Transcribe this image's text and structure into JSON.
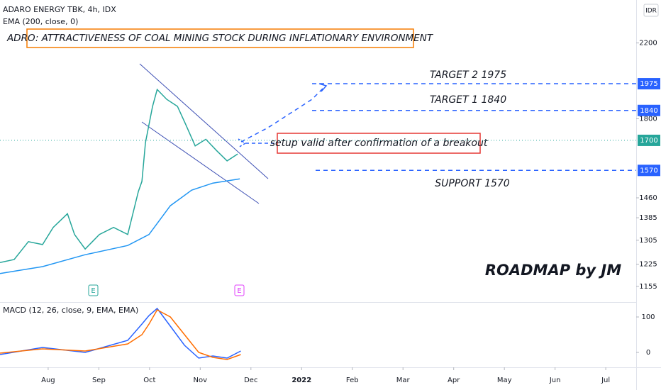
{
  "chart_data": [
    {
      "type": "line",
      "ylog": true,
      "ylim": [
        1110,
        2465
      ],
      "yticks": [
        1155,
        1225,
        1305,
        1385,
        1460,
        1800,
        2200
      ],
      "y_unit": "IDR",
      "xlim": [
        7.05,
        19.6
      ],
      "xticks": [
        {
          "value": 8,
          "label": "Aug"
        },
        {
          "value": 9,
          "label": "Sep"
        },
        {
          "value": 10,
          "label": "Oct"
        },
        {
          "value": 11,
          "label": "Nov"
        },
        {
          "value": 12,
          "label": "Dec"
        },
        {
          "value": 13,
          "label": "2022"
        },
        {
          "value": 14,
          "label": "Feb"
        },
        {
          "value": 15,
          "label": "Mar"
        },
        {
          "value": 16,
          "label": "Apr"
        },
        {
          "value": 17,
          "label": "May"
        },
        {
          "value": 18,
          "label": "Jun"
        },
        {
          "value": 19,
          "label": "Jul"
        }
      ],
      "series": [
        {
          "name": "ADARO ENERGY TBK, 4h, IDX",
          "color": "#26a69a",
          "x": [
            7.05,
            7.33,
            7.61,
            7.89,
            8.1,
            8.38,
            8.52,
            8.73,
            9.01,
            9.29,
            9.57,
            9.78,
            9.85,
            9.92,
            10.06,
            10.15,
            10.34,
            10.55,
            10.71,
            10.9,
            11.11,
            11.32,
            11.53,
            11.74
          ],
          "values": [
            1230,
            1240,
            1300,
            1290,
            1350,
            1400,
            1325,
            1275,
            1325,
            1350,
            1325,
            1485,
            1525,
            1690,
            1860,
            1945,
            1895,
            1860,
            1775,
            1675,
            1705,
            1655,
            1610,
            1640
          ]
        },
        {
          "name": "EMA (200, close, 0)",
          "color": "#2196f3",
          "x": [
            7.05,
            7.89,
            8.73,
            9.57,
            9.99,
            10.41,
            10.83,
            11.25,
            11.78
          ],
          "values": [
            1195,
            1217,
            1256,
            1287,
            1325,
            1430,
            1490,
            1518,
            1535
          ]
        }
      ],
      "levels": [
        1975,
        1840,
        1570
      ],
      "last_price": 1700,
      "annotations": {
        "title_box": "ADRO: ATTRACTIVENESS OF COAL MINING STOCK DURING INFLATIONARY ENVIRONMENT",
        "target2": "TARGET 2  1975",
        "target1": "TARGET 1  1840",
        "support": "SUPPORT 1570",
        "note": "setup valid after confirmation of a breakout",
        "signature": "ROADMAP by JM",
        "earnings": [
          "E",
          "E"
        ]
      }
    },
    {
      "type": "line",
      "title": "MACD (12, 26, close, 9, EMA, EMA)",
      "xlim": [
        7.05,
        19.6
      ],
      "ylim": [
        -36,
        138
      ],
      "yticks": [
        0,
        100
      ],
      "x": [
        7.05,
        7.89,
        8.73,
        9.57,
        9.85,
        9.99,
        10.15,
        10.41,
        10.69,
        10.97,
        11.25,
        11.53,
        11.8
      ],
      "series": [
        {
          "color": "#2962ff",
          "values": [
            -6,
            14,
            0,
            34,
            80,
            104,
            124,
            74,
            20,
            -16,
            -10,
            -16,
            4
          ]
        },
        {
          "color": "#ff6d00",
          "values": [
            -2,
            10,
            4,
            24,
            50,
            80,
            120,
            100,
            50,
            0,
            -14,
            -20,
            -6
          ]
        }
      ]
    }
  ]
}
